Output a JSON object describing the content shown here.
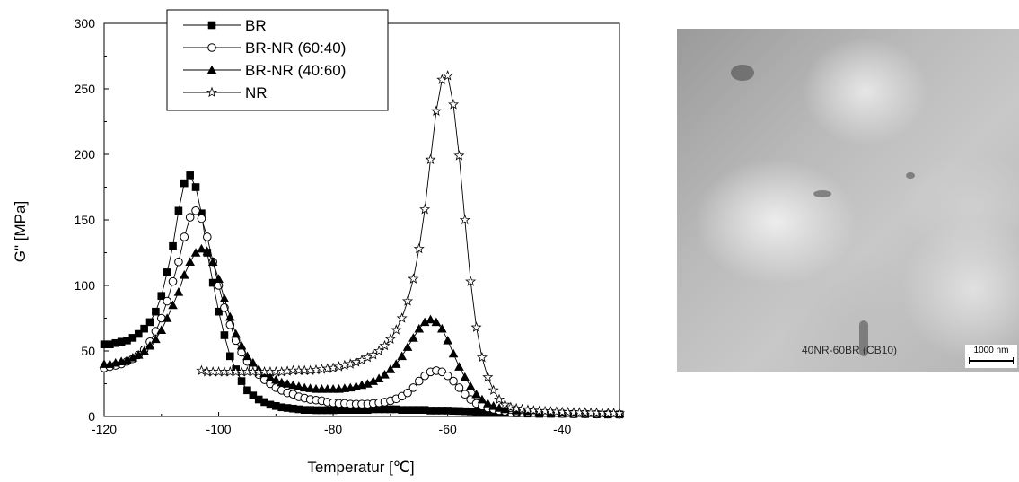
{
  "chart_data": {
    "type": "line",
    "xlabel": "Temperatur [℃]",
    "ylabel": "G\" [MPa]",
    "xlim": [
      -120,
      -30
    ],
    "ylim": [
      0,
      300
    ],
    "xticks": [
      "-120",
      "-100",
      "-80",
      "-60",
      "-40"
    ],
    "yticks": [
      "0",
      "50",
      "100",
      "150",
      "200",
      "250",
      "300"
    ],
    "legend_position": "top-left",
    "series": [
      {
        "name": "BR",
        "marker": "filled-square",
        "points": [
          [
            -120,
            55
          ],
          [
            -119,
            55
          ],
          [
            -118,
            56
          ],
          [
            -117,
            57
          ],
          [
            -116,
            58
          ],
          [
            -115,
            60
          ],
          [
            -114,
            63
          ],
          [
            -113,
            67
          ],
          [
            -112,
            72
          ],
          [
            -111,
            80
          ],
          [
            -110,
            92
          ],
          [
            -109,
            110
          ],
          [
            -108,
            130
          ],
          [
            -107,
            157
          ],
          [
            -106,
            178
          ],
          [
            -105,
            184
          ],
          [
            -104,
            175
          ],
          [
            -103,
            155
          ],
          [
            -102,
            125
          ],
          [
            -101,
            102
          ],
          [
            -100,
            80
          ],
          [
            -99,
            62
          ],
          [
            -98,
            46
          ],
          [
            -97,
            36
          ],
          [
            -96,
            27
          ],
          [
            -95,
            20
          ],
          [
            -94,
            16
          ],
          [
            -93,
            13
          ],
          [
            -92,
            11
          ],
          [
            -91,
            9
          ],
          [
            -90,
            8
          ],
          [
            -89,
            7
          ],
          [
            -88,
            6.5
          ],
          [
            -87,
            6
          ],
          [
            -86,
            5.5
          ],
          [
            -85,
            5
          ],
          [
            -84,
            5
          ],
          [
            -83,
            4.8
          ],
          [
            -82,
            4.8
          ],
          [
            -81,
            4.8
          ],
          [
            -80,
            4.8
          ],
          [
            -79,
            5
          ],
          [
            -78,
            5
          ],
          [
            -77,
            5
          ],
          [
            -76,
            5
          ],
          [
            -75,
            5
          ],
          [
            -74,
            5
          ],
          [
            -73,
            5.5
          ],
          [
            -72,
            5.5
          ],
          [
            -71,
            5.5
          ],
          [
            -70,
            5.5
          ],
          [
            -69,
            5.5
          ],
          [
            -68,
            5
          ],
          [
            -67,
            5
          ],
          [
            -66,
            5
          ],
          [
            -65,
            5
          ],
          [
            -64,
            5
          ],
          [
            -63,
            4.5
          ],
          [
            -62,
            4.5
          ],
          [
            -61,
            4.5
          ],
          [
            -60,
            4.5
          ],
          [
            -59,
            4.3
          ],
          [
            -58,
            4.2
          ],
          [
            -57,
            4
          ],
          [
            -56,
            3.8
          ],
          [
            -55,
            3.6
          ],
          [
            -54,
            3.4
          ],
          [
            -53,
            3.2
          ],
          [
            -52,
            3
          ],
          [
            -51,
            2.8
          ],
          [
            -50,
            2.6
          ],
          [
            -48,
            2.4
          ],
          [
            -46,
            2.2
          ],
          [
            -44,
            2
          ],
          [
            -42,
            2
          ],
          [
            -40,
            2
          ],
          [
            -38,
            1.8
          ],
          [
            -36,
            1.8
          ],
          [
            -34,
            1.6
          ],
          [
            -32,
            1.5
          ],
          [
            -30,
            1.5
          ]
        ]
      },
      {
        "name": "BR-NR (60:40)",
        "marker": "open-circle",
        "points": [
          [
            -120,
            37
          ],
          [
            -119,
            38
          ],
          [
            -118,
            39
          ],
          [
            -117,
            40
          ],
          [
            -116,
            42
          ],
          [
            -115,
            44
          ],
          [
            -114,
            47
          ],
          [
            -113,
            51
          ],
          [
            -112,
            57
          ],
          [
            -111,
            65
          ],
          [
            -110,
            75
          ],
          [
            -109,
            88
          ],
          [
            -108,
            103
          ],
          [
            -107,
            118
          ],
          [
            -106,
            137
          ],
          [
            -105,
            152
          ],
          [
            -104,
            157
          ],
          [
            -103,
            151
          ],
          [
            -102,
            137
          ],
          [
            -101,
            118
          ],
          [
            -100,
            100
          ],
          [
            -99,
            83
          ],
          [
            -98,
            70
          ],
          [
            -97,
            58
          ],
          [
            -96,
            49
          ],
          [
            -95,
            42
          ],
          [
            -94,
            37
          ],
          [
            -93,
            32
          ],
          [
            -92,
            28
          ],
          [
            -91,
            25
          ],
          [
            -90,
            22
          ],
          [
            -89,
            20
          ],
          [
            -88,
            18
          ],
          [
            -87,
            17
          ],
          [
            -86,
            15
          ],
          [
            -85,
            14
          ],
          [
            -84,
            13
          ],
          [
            -83,
            12.5
          ],
          [
            -82,
            12
          ],
          [
            -81,
            11
          ],
          [
            -80,
            10.5
          ],
          [
            -79,
            10
          ],
          [
            -78,
            10
          ],
          [
            -77,
            9.5
          ],
          [
            -76,
            9.5
          ],
          [
            -75,
            9.5
          ],
          [
            -74,
            9.5
          ],
          [
            -73,
            10
          ],
          [
            -72,
            10.5
          ],
          [
            -71,
            11
          ],
          [
            -70,
            12
          ],
          [
            -69,
            13.5
          ],
          [
            -68,
            15.5
          ],
          [
            -67,
            18
          ],
          [
            -66,
            22
          ],
          [
            -65,
            27
          ],
          [
            -64,
            31
          ],
          [
            -63,
            34
          ],
          [
            -62,
            35
          ],
          [
            -61,
            34
          ],
          [
            -60,
            31
          ],
          [
            -59,
            27
          ],
          [
            -58,
            22
          ],
          [
            -57,
            17
          ],
          [
            -56,
            13
          ],
          [
            -55,
            10
          ],
          [
            -54,
            8
          ],
          [
            -53,
            6.5
          ],
          [
            -52,
            5.5
          ],
          [
            -51,
            4.5
          ],
          [
            -50,
            4
          ],
          [
            -48,
            3.5
          ],
          [
            -46,
            3
          ],
          [
            -44,
            2.5
          ],
          [
            -42,
            2.5
          ],
          [
            -40,
            2.2
          ],
          [
            -38,
            2
          ],
          [
            -36,
            2
          ],
          [
            -34,
            1.8
          ],
          [
            -32,
            1.8
          ],
          [
            -30,
            1.6
          ]
        ]
      },
      {
        "name": "BR-NR (40:60)",
        "marker": "filled-triangle",
        "points": [
          [
            -120,
            40
          ],
          [
            -119,
            40
          ],
          [
            -118,
            41
          ],
          [
            -117,
            42
          ],
          [
            -116,
            43
          ],
          [
            -115,
            45
          ],
          [
            -114,
            47
          ],
          [
            -113,
            50
          ],
          [
            -112,
            54
          ],
          [
            -111,
            59
          ],
          [
            -110,
            66
          ],
          [
            -109,
            75
          ],
          [
            -108,
            85
          ],
          [
            -107,
            95
          ],
          [
            -106,
            108
          ],
          [
            -105,
            118
          ],
          [
            -104,
            125
          ],
          [
            -103,
            128
          ],
          [
            -102,
            126
          ],
          [
            -101,
            118
          ],
          [
            -100,
            105
          ],
          [
            -99,
            90
          ],
          [
            -98,
            76
          ],
          [
            -97,
            63
          ],
          [
            -96,
            54
          ],
          [
            -95,
            46
          ],
          [
            -94,
            41
          ],
          [
            -93,
            36
          ],
          [
            -92,
            33
          ],
          [
            -91,
            30
          ],
          [
            -90,
            28
          ],
          [
            -89,
            26
          ],
          [
            -88,
            25
          ],
          [
            -87,
            24
          ],
          [
            -86,
            23
          ],
          [
            -85,
            22
          ],
          [
            -84,
            21.5
          ],
          [
            -83,
            21
          ],
          [
            -82,
            21
          ],
          [
            -81,
            21
          ],
          [
            -80,
            21
          ],
          [
            -79,
            21
          ],
          [
            -78,
            21.5
          ],
          [
            -77,
            22
          ],
          [
            -76,
            23
          ],
          [
            -75,
            24
          ],
          [
            -74,
            25
          ],
          [
            -73,
            27
          ],
          [
            -72,
            29
          ],
          [
            -71,
            32
          ],
          [
            -70,
            36
          ],
          [
            -69,
            40
          ],
          [
            -68,
            46
          ],
          [
            -67,
            53
          ],
          [
            -66,
            60
          ],
          [
            -65,
            67
          ],
          [
            -64,
            72
          ],
          [
            -63,
            74
          ],
          [
            -62,
            72
          ],
          [
            -61,
            67
          ],
          [
            -60,
            58
          ],
          [
            -59,
            48
          ],
          [
            -58,
            38
          ],
          [
            -57,
            30
          ],
          [
            -56,
            23
          ],
          [
            -55,
            17
          ],
          [
            -54,
            13
          ],
          [
            -53,
            10
          ],
          [
            -52,
            8
          ],
          [
            -51,
            6.5
          ],
          [
            -50,
            5.5
          ],
          [
            -48,
            4.5
          ],
          [
            -46,
            4
          ],
          [
            -44,
            3.5
          ],
          [
            -42,
            3
          ],
          [
            -40,
            3
          ],
          [
            -38,
            2.8
          ],
          [
            -36,
            2.5
          ],
          [
            -34,
            2.5
          ],
          [
            -32,
            2.3
          ],
          [
            -30,
            2.2
          ]
        ]
      },
      {
        "name": "NR",
        "marker": "open-star",
        "points": [
          [
            -103,
            35
          ],
          [
            -102,
            34
          ],
          [
            -101,
            34
          ],
          [
            -100,
            34
          ],
          [
            -99,
            34
          ],
          [
            -98,
            34
          ],
          [
            -97,
            34
          ],
          [
            -96,
            34
          ],
          [
            -95,
            34
          ],
          [
            -94,
            34
          ],
          [
            -93,
            34
          ],
          [
            -92,
            34
          ],
          [
            -91,
            34
          ],
          [
            -90,
            34
          ],
          [
            -89,
            34
          ],
          [
            -88,
            34.5
          ],
          [
            -87,
            35
          ],
          [
            -86,
            35
          ],
          [
            -85,
            35
          ],
          [
            -84,
            35
          ],
          [
            -83,
            35.5
          ],
          [
            -82,
            36
          ],
          [
            -81,
            36.5
          ],
          [
            -80,
            37
          ],
          [
            -79,
            38
          ],
          [
            -78,
            39
          ],
          [
            -77,
            40
          ],
          [
            -76,
            41.5
          ],
          [
            -75,
            43
          ],
          [
            -74,
            45
          ],
          [
            -73,
            47
          ],
          [
            -72,
            50
          ],
          [
            -71,
            54
          ],
          [
            -70,
            59
          ],
          [
            -69,
            66
          ],
          [
            -68,
            75
          ],
          [
            -67,
            88
          ],
          [
            -66,
            105
          ],
          [
            -65,
            128
          ],
          [
            -64,
            158
          ],
          [
            -63,
            196
          ],
          [
            -62,
            233
          ],
          [
            -61,
            257
          ],
          [
            -60,
            260
          ],
          [
            -59,
            238
          ],
          [
            -58,
            199
          ],
          [
            -57,
            150
          ],
          [
            -56,
            103
          ],
          [
            -55,
            68
          ],
          [
            -54,
            45
          ],
          [
            -53,
            30
          ],
          [
            -52,
            20
          ],
          [
            -51,
            13
          ],
          [
            -50,
            9
          ],
          [
            -49,
            7
          ],
          [
            -48,
            6
          ],
          [
            -47,
            5.5
          ],
          [
            -46,
            5
          ],
          [
            -45,
            4.5
          ],
          [
            -44,
            4.2
          ],
          [
            -43,
            4
          ],
          [
            -42,
            3.8
          ],
          [
            -41,
            3.6
          ],
          [
            -40,
            3.4
          ],
          [
            -39,
            3.2
          ],
          [
            -38,
            3
          ],
          [
            -37,
            3
          ],
          [
            -36,
            3
          ],
          [
            -35,
            2.8
          ],
          [
            -34,
            2.8
          ],
          [
            -33,
            2.6
          ],
          [
            -32,
            2.5
          ],
          [
            -31,
            2.5
          ],
          [
            -30,
            2.4
          ]
        ]
      }
    ]
  },
  "micrograph": {
    "caption": "40NR-60BR (CB10)",
    "scale_label": "1000 nm"
  }
}
